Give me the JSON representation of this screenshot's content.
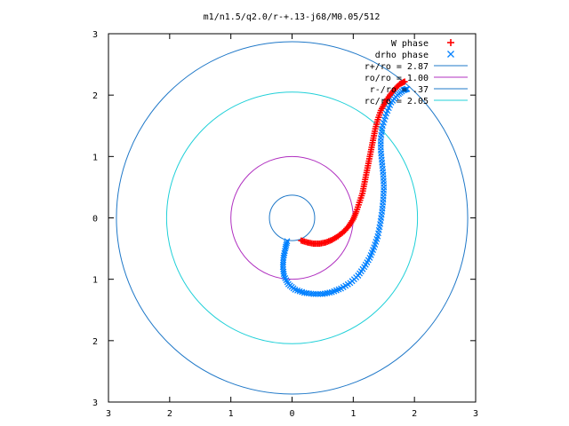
{
  "chart_data": {
    "type": "scatter",
    "title": "m1/n1.5/q2.0/r-+.13-j68/M0.05/512",
    "xlabel": "",
    "ylabel": "",
    "xlim": [
      -3,
      3
    ],
    "ylim": [
      -3,
      3
    ],
    "grid": false,
    "legend_position": "top-right",
    "xticks": [
      -3,
      -2,
      -1,
      0,
      1,
      2,
      3
    ],
    "yticks": [
      -3,
      -2,
      -1,
      0,
      1,
      2,
      3
    ],
    "xtick_labels": [
      "3",
      "2",
      "1",
      "0",
      "1",
      "2",
      "3"
    ],
    "ytick_labels": [
      "3",
      "2",
      "1",
      "0",
      "1",
      "2",
      "3"
    ],
    "series": [
      {
        "name": "W phase",
        "marker": "plus",
        "color": "#ff0000",
        "points": [
          [
            0.15,
            -0.37
          ],
          [
            0.25,
            -0.4
          ],
          [
            0.35,
            -0.42
          ],
          [
            0.45,
            -0.42
          ],
          [
            0.55,
            -0.4
          ],
          [
            0.65,
            -0.36
          ],
          [
            0.75,
            -0.3
          ],
          [
            0.85,
            -0.22
          ],
          [
            0.93,
            -0.13
          ],
          [
            1.0,
            -0.02
          ],
          [
            1.05,
            0.1
          ],
          [
            1.1,
            0.25
          ],
          [
            1.15,
            0.4
          ],
          [
            1.18,
            0.55
          ],
          [
            1.21,
            0.7
          ],
          [
            1.24,
            0.85
          ],
          [
            1.27,
            1.0
          ],
          [
            1.3,
            1.15
          ],
          [
            1.33,
            1.3
          ],
          [
            1.36,
            1.45
          ],
          [
            1.4,
            1.6
          ],
          [
            1.45,
            1.75
          ],
          [
            1.52,
            1.88
          ],
          [
            1.6,
            2.0
          ],
          [
            1.68,
            2.1
          ],
          [
            1.76,
            2.18
          ],
          [
            1.84,
            2.22
          ]
        ]
      },
      {
        "name": "drho phase",
        "marker": "cross",
        "color": "#0080ff",
        "points": [
          [
            -0.08,
            -0.38
          ],
          [
            -0.11,
            -0.5
          ],
          [
            -0.14,
            -0.65
          ],
          [
            -0.15,
            -0.8
          ],
          [
            -0.13,
            -0.95
          ],
          [
            -0.06,
            -1.08
          ],
          [
            0.05,
            -1.17
          ],
          [
            0.2,
            -1.22
          ],
          [
            0.35,
            -1.24
          ],
          [
            0.5,
            -1.24
          ],
          [
            0.65,
            -1.21
          ],
          [
            0.8,
            -1.15
          ],
          [
            0.95,
            -1.06
          ],
          [
            1.08,
            -0.94
          ],
          [
            1.18,
            -0.8
          ],
          [
            1.27,
            -0.65
          ],
          [
            1.34,
            -0.48
          ],
          [
            1.4,
            -0.3
          ],
          [
            1.44,
            -0.1
          ],
          [
            1.47,
            0.1
          ],
          [
            1.49,
            0.3
          ],
          [
            1.5,
            0.5
          ],
          [
            1.49,
            0.7
          ],
          [
            1.47,
            0.9
          ],
          [
            1.45,
            1.1
          ],
          [
            1.45,
            1.3
          ],
          [
            1.48,
            1.5
          ],
          [
            1.54,
            1.7
          ],
          [
            1.62,
            1.88
          ],
          [
            1.72,
            2.0
          ],
          [
            1.82,
            2.08
          ],
          [
            1.88,
            2.1
          ]
        ]
      }
    ],
    "circles": [
      {
        "name": "r+/ro = 2.87",
        "radius": 2.87,
        "color": "#1f78c8"
      },
      {
        "name": "ro/ro = 1.00",
        "radius": 1.0,
        "color": "#b030c0"
      },
      {
        "name": "r-/ro = .37",
        "radius": 0.37,
        "color": "#1f78c8"
      },
      {
        "name": "rc/ro = 2.05",
        "radius": 2.05,
        "color": "#20d0d8"
      }
    ]
  }
}
